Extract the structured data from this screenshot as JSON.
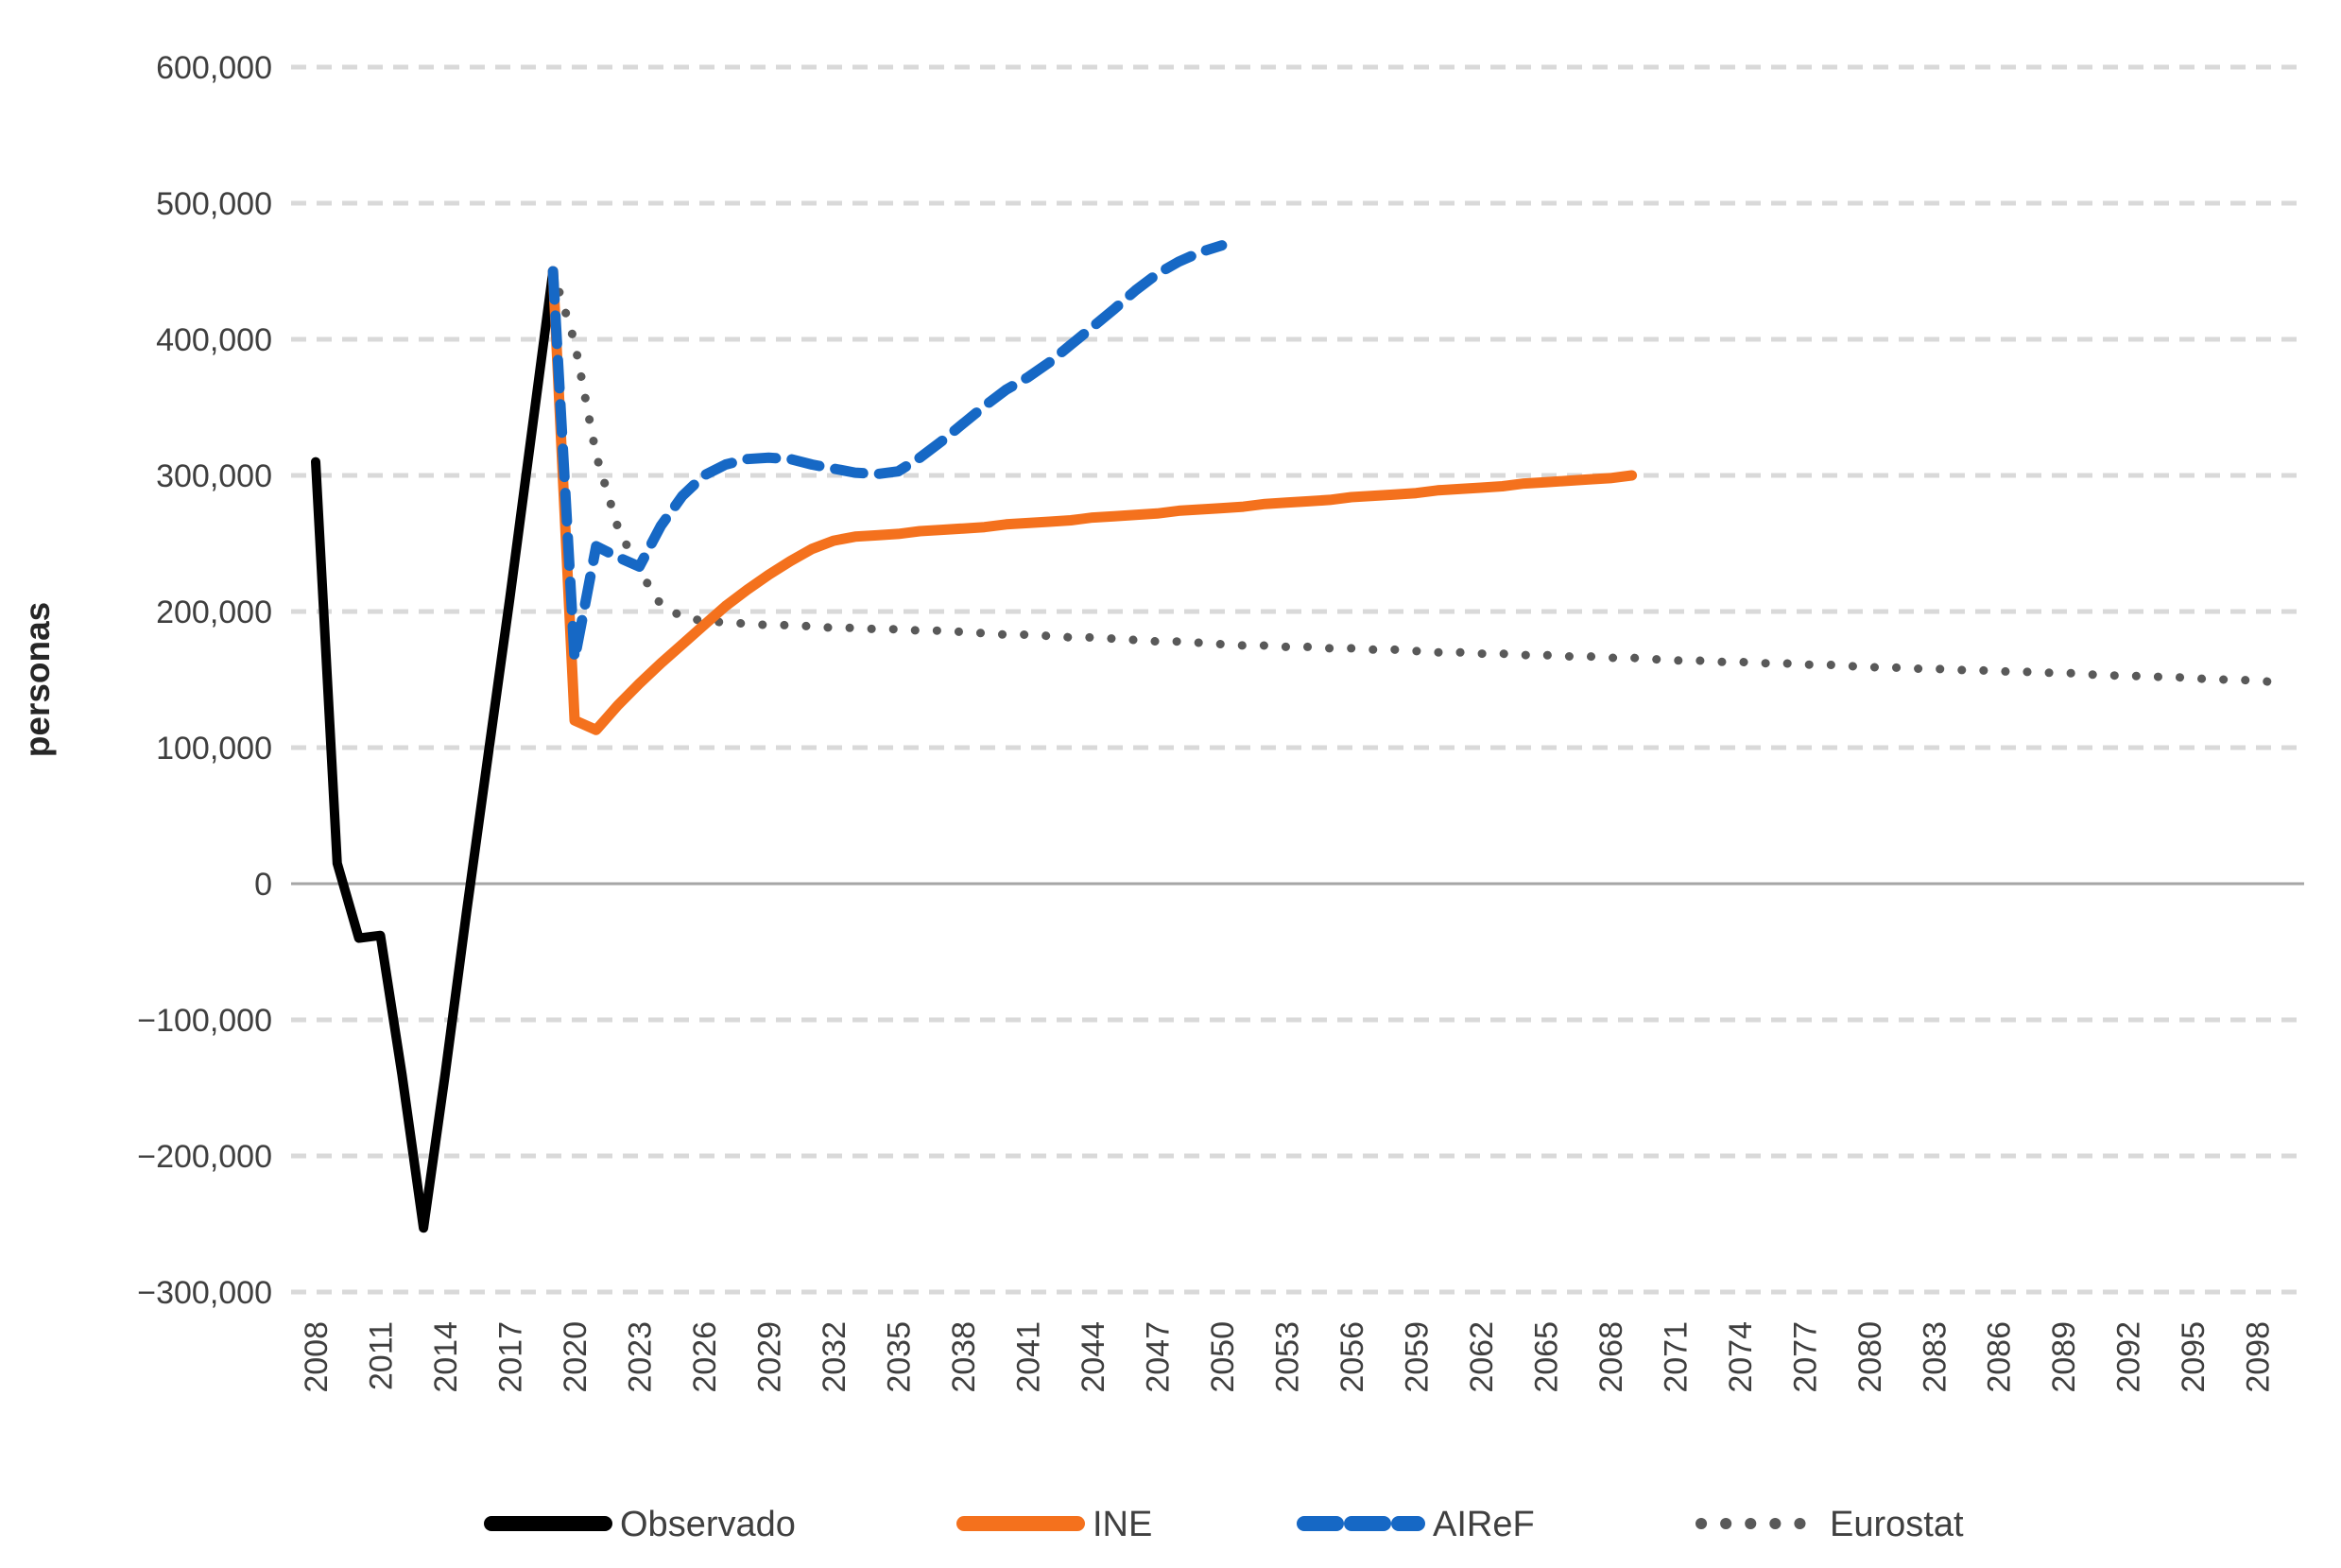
{
  "chart_data": {
    "type": "line",
    "title": "",
    "xlabel": "",
    "ylabel": "personas",
    "ylim": [
      -300000,
      600000
    ],
    "grid": "horizontal-dashed",
    "zero_line": true,
    "legend_position": "bottom-center",
    "y_ticks": [
      {
        "value": 600000,
        "label": "600,000"
      },
      {
        "value": 500000,
        "label": "500,000"
      },
      {
        "value": 400000,
        "label": "400,000"
      },
      {
        "value": 300000,
        "label": "300,000"
      },
      {
        "value": 200000,
        "label": "200,000"
      },
      {
        "value": 100000,
        "label": "100,000"
      },
      {
        "value": 0,
        "label": "0"
      },
      {
        "value": -100000,
        "label": "−100,000"
      },
      {
        "value": -200000,
        "label": "−200,000"
      },
      {
        "value": -300000,
        "label": "−300,000"
      }
    ],
    "x_ticks": [
      2008,
      2011,
      2014,
      2017,
      2020,
      2023,
      2026,
      2029,
      2032,
      2035,
      2038,
      2041,
      2044,
      2047,
      2050,
      2053,
      2056,
      2059,
      2062,
      2065,
      2068,
      2071,
      2074,
      2077,
      2080,
      2083,
      2086,
      2089,
      2092,
      2095,
      2098
    ],
    "x_range": [
      2008,
      2100
    ],
    "series": [
      {
        "name": "Observado",
        "color": "#000000",
        "style": "solid",
        "start_year": 2008,
        "values": [
          310000,
          15000,
          -40000,
          -38000,
          -140000,
          -253000,
          -140000,
          -20000,
          95000,
          210000,
          330000,
          450000
        ]
      },
      {
        "name": "INE",
        "color": "#f4711d",
        "style": "solid",
        "start_year": 2019,
        "values": [
          450000,
          120000,
          113000,
          131000,
          147000,
          162000,
          176000,
          190000,
          204000,
          216000,
          227000,
          237000,
          246000,
          252000,
          255000,
          256000,
          257000,
          259000,
          260000,
          261000,
          262000,
          264000,
          265000,
          266000,
          267000,
          269000,
          270000,
          271000,
          272000,
          274000,
          275000,
          276000,
          277000,
          279000,
          280000,
          281000,
          282000,
          284000,
          285000,
          286000,
          287000,
          289000,
          290000,
          291000,
          292000,
          294000,
          295000,
          296000,
          297000,
          298000,
          300000
        ]
      },
      {
        "name": "AIReF",
        "color": "#1668c5",
        "style": "dashed",
        "start_year": 2019,
        "values": [
          450000,
          165000,
          248000,
          240000,
          233000,
          263000,
          285000,
          300000,
          308000,
          312000,
          313000,
          312000,
          308000,
          305000,
          302000,
          301000,
          303000,
          313000,
          325000,
          338000,
          351000,
          363000,
          372000,
          383000,
          396000,
          409000,
          422000,
          436000,
          448000,
          457000,
          464000,
          469000
        ]
      },
      {
        "name": "Eurostat",
        "color": "#595959",
        "style": "dotted",
        "start_year": 2019,
        "values": [
          450000,
          398000,
          315000,
          262000,
          230000,
          205000,
          196000,
          193000,
          192000,
          191000,
          190000,
          190000,
          189000,
          188000,
          188000,
          187000,
          187000,
          186000,
          186000,
          185000,
          184000,
          183000,
          183000,
          182000,
          181000,
          181000,
          180000,
          179000,
          178000,
          178000,
          177000,
          176000,
          175000,
          175000,
          174000,
          174000,
          173000,
          173000,
          172000,
          172000,
          171000,
          170000,
          170000,
          169000,
          169000,
          168000,
          168000,
          167000,
          167000,
          166000,
          166000,
          165000,
          164000,
          164000,
          163000,
          163000,
          162000,
          162000,
          161000,
          161000,
          160000,
          159000,
          159000,
          158000,
          158000,
          157000,
          157000,
          156000,
          156000,
          155000,
          155000,
          154000,
          153000,
          153000,
          152000,
          152000,
          151000,
          150000,
          150000,
          149000,
          148000
        ]
      }
    ],
    "legend": [
      "Observado",
      "INE",
      "AIReF",
      "Eurostat"
    ],
    "colors": {
      "grid": "#d9d9d9",
      "zero_line": "#a6a6a6",
      "tick_text": "#3f3f3f",
      "observado": "#000000",
      "ine": "#f4711d",
      "airef": "#1668c5",
      "eurostat": "#595959"
    }
  }
}
